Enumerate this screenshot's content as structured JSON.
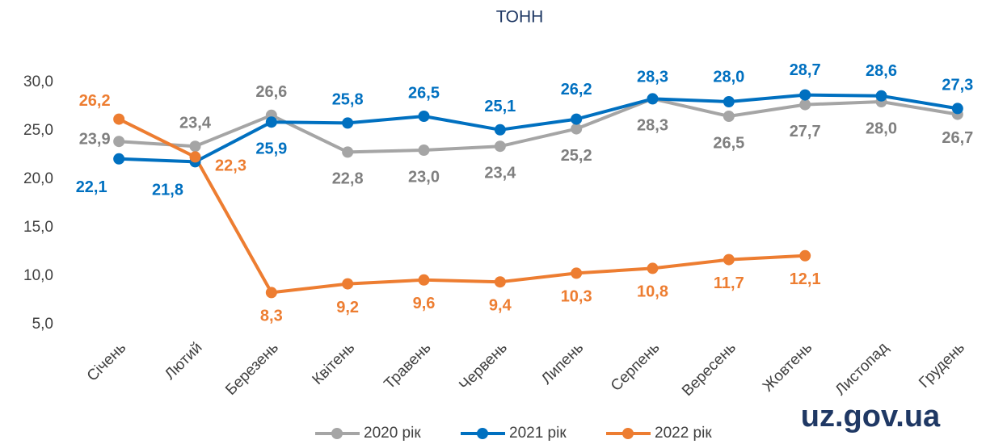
{
  "chart_data": {
    "type": "line",
    "title": "ТОНН",
    "watermark": "uz.gov.ua",
    "categories": [
      "Січень",
      "Лютий",
      "Березень",
      "Квітень",
      "Травень",
      "Червень",
      "Липень",
      "Серпень",
      "Вересень",
      "Жовтень",
      "Листопад",
      "Грудень"
    ],
    "series": [
      {
        "name": "2020 рік",
        "color": "#a5a5a5",
        "values": [
          23.9,
          23.4,
          26.6,
          22.8,
          23.0,
          23.4,
          25.2,
          28.3,
          26.5,
          27.7,
          28.0,
          26.7
        ],
        "value_labels": [
          "23,9",
          "23,4",
          "26,6",
          "22,8",
          "23,0",
          "23,4",
          "25,2",
          "28,3",
          "26,5",
          "27,7",
          "28,0",
          "26,7"
        ]
      },
      {
        "name": "2021 рік",
        "color": "#0070c0",
        "values": [
          22.1,
          21.8,
          25.9,
          25.8,
          26.5,
          25.1,
          26.2,
          28.3,
          28.0,
          28.7,
          28.6,
          27.3
        ],
        "value_labels": [
          "22,1",
          "21,8",
          "25,9",
          "25,8",
          "26,5",
          "25,1",
          "26,2",
          "28,3",
          "28,0",
          "28,7",
          "28,6",
          "27,3"
        ]
      },
      {
        "name": "2022 рік",
        "color": "#ed7d31",
        "values": [
          26.2,
          22.3,
          8.3,
          9.2,
          9.6,
          9.4,
          10.3,
          10.8,
          11.7,
          12.1,
          null,
          null
        ],
        "value_labels": [
          "26,2",
          "22,3",
          "8,3",
          "9,2",
          "9,6",
          "9,4",
          "10,3",
          "10,8",
          "11,7",
          "12,1",
          null,
          null
        ]
      }
    ],
    "ylim": [
      5,
      30
    ],
    "yticks": [
      {
        "value": 5,
        "label": "5,0"
      },
      {
        "value": 10,
        "label": "10,0"
      },
      {
        "value": 15,
        "label": "15,0"
      },
      {
        "value": 20,
        "label": "20,0"
      },
      {
        "value": 25,
        "label": "25,0"
      },
      {
        "value": 30,
        "label": "30,0"
      }
    ],
    "legend": "bottom"
  }
}
